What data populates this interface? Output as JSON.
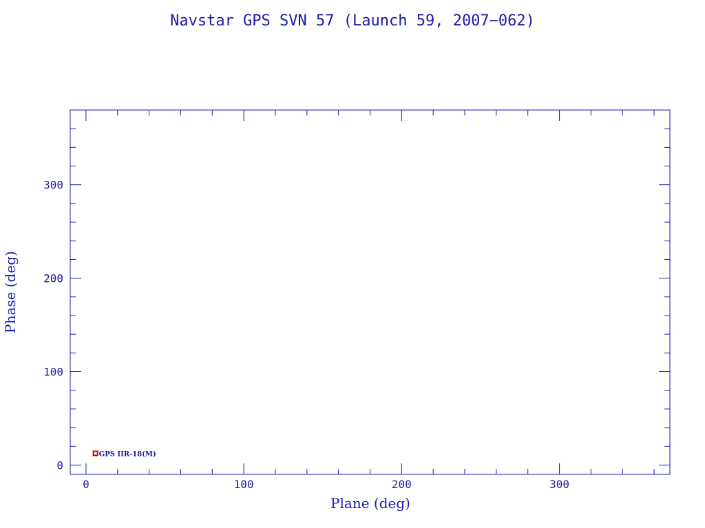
{
  "chart_data": {
    "type": "scatter",
    "title": "Navstar GPS SVN 57 (Launch 59, 2007−062)",
    "xlabel": "Plane (deg)",
    "ylabel": "Phase (deg)",
    "xlim": [
      -10,
      370
    ],
    "ylim": [
      -10,
      380
    ],
    "xticks": [
      0,
      100,
      200,
      300
    ],
    "yticks": [
      0,
      100,
      200,
      300
    ],
    "minor_step": 20,
    "grid": false,
    "points": [
      {
        "label": "GPS IIR-18(M)",
        "x": 6,
        "y": 12.5
      }
    ],
    "colors": {
      "axis": "#1a1aa6",
      "point": "#cc0000"
    }
  }
}
